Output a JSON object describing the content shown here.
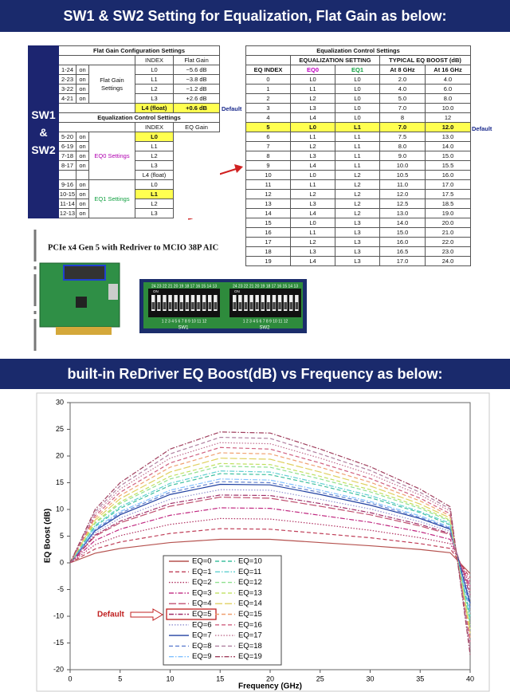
{
  "header": {
    "title": "SW1 & SW2 Setting for Equalization, Flat Gain as below:"
  },
  "switch_table": {
    "group_label": "SW1 & SW2",
    "flat_gain": {
      "title": "Flat Gain Configuration Settings",
      "headers": [
        "INDEX",
        "Flat Gain"
      ],
      "settings_label": "Flat Gain Settings",
      "rows": [
        [
          "1-24",
          "on",
          "L0",
          "−5.6 dB"
        ],
        [
          "2-23",
          "on",
          "L1",
          "−3.8 dB"
        ],
        [
          "3-22",
          "on",
          "L2",
          "−1.2 dB"
        ],
        [
          "4-21",
          "on",
          "L3",
          "+2.6 dB"
        ]
      ],
      "float_row": [
        "L4 (float)",
        "+0.6 dB"
      ],
      "default_label": "Default"
    },
    "eq_control": {
      "title": "Equalization Control Settings",
      "headers": [
        "INDEX",
        "EQ Gain"
      ],
      "eq0_label": "EQ0 Settings",
      "eq0_rows": [
        [
          "5-20",
          "on",
          "L0"
        ],
        [
          "6-19",
          "on",
          "L1"
        ],
        [
          "7-18",
          "on",
          "L2"
        ],
        [
          "8-17",
          "on",
          "L3"
        ]
      ],
      "eq0_float": "L4 (float)",
      "eq1_label": "EQ1 Settings",
      "eq1_rows": [
        [
          "9-16",
          "on",
          "L0"
        ],
        [
          "10-15",
          "on",
          "L1"
        ],
        [
          "11-14",
          "on",
          "L2"
        ],
        [
          "12-13",
          "on",
          "L3"
        ]
      ]
    }
  },
  "eq_table": {
    "title": "Equalization Control Settings",
    "group_headers": [
      "EQUALIZATION SETTING",
      "TYPICAL EQ BOOST (dB)"
    ],
    "headers": [
      "EQ INDEX",
      "EQ0",
      "EQ1",
      "At 8 GHz",
      "At 16 GHz"
    ],
    "rows": [
      [
        "0",
        "L0",
        "L0",
        "2.0",
        "4.0"
      ],
      [
        "1",
        "L1",
        "L0",
        "4.0",
        "6.0"
      ],
      [
        "2",
        "L2",
        "L0",
        "5.0",
        "8.0"
      ],
      [
        "3",
        "L3",
        "L0",
        "7.0",
        "10.0"
      ],
      [
        "4",
        "L4",
        "L0",
        "8",
        "12"
      ],
      [
        "5",
        "L0",
        "L1",
        "7.0",
        "12.0"
      ],
      [
        "6",
        "L1",
        "L1",
        "7.5",
        "13.0"
      ],
      [
        "7",
        "L2",
        "L1",
        "8.0",
        "14.0"
      ],
      [
        "8",
        "L3",
        "L1",
        "9.0",
        "15.0"
      ],
      [
        "9",
        "L4",
        "L1",
        "10.0",
        "15.5"
      ],
      [
        "10",
        "L0",
        "L2",
        "10.5",
        "16.0"
      ],
      [
        "11",
        "L1",
        "L2",
        "11.0",
        "17.0"
      ],
      [
        "12",
        "L2",
        "L2",
        "12.0",
        "17.5"
      ],
      [
        "13",
        "L3",
        "L2",
        "12.5",
        "18.5"
      ],
      [
        "14",
        "L4",
        "L2",
        "13.0",
        "19.0"
      ],
      [
        "15",
        "L0",
        "L3",
        "14.0",
        "20.0"
      ],
      [
        "16",
        "L1",
        "L3",
        "15.0",
        "21.0"
      ],
      [
        "17",
        "L2",
        "L3",
        "16.0",
        "22.0"
      ],
      [
        "18",
        "L3",
        "L3",
        "16.5",
        "23.0"
      ],
      [
        "19",
        "L4",
        "L3",
        "17.0",
        "24.0"
      ]
    ],
    "highlight_row": 5,
    "default_label": "Default"
  },
  "board": {
    "caption": "PCIe x4 Gen 5 with Redriver to MCIO 38P AIC"
  },
  "dip": {
    "sw1": "SW1",
    "sw2": "SW2",
    "on": "ON",
    "top_pins": "24 23 22 21 20 19 18 17 16 15 14 13",
    "bottom_pins": "1 2 3 4 5 6 7 8 9 10 11 12"
  },
  "header2": {
    "title": "built-in ReDriver EQ Boost(dB) vs Frequency as below:"
  },
  "chart_data": {
    "type": "line",
    "xlabel": "Frequency (GHz)",
    "ylabel": "EQ Boost (dB)",
    "x": [
      0,
      2.5,
      5,
      10,
      15,
      20,
      25,
      30,
      35,
      38,
      40
    ],
    "xlim": [
      0,
      40
    ],
    "ylim": [
      -20,
      30
    ],
    "xticks": [
      0,
      5,
      10,
      15,
      20,
      25,
      30,
      35,
      40
    ],
    "yticks": [
      -20,
      -15,
      -10,
      -5,
      0,
      5,
      10,
      15,
      20,
      25,
      30
    ],
    "grid": false,
    "legend": "bottom",
    "annotation": "Default",
    "highlight_series": 5,
    "series": [
      {
        "name": "EQ=0",
        "color": "#b5524f",
        "style": "solid",
        "values": [
          0,
          1.8,
          2.7,
          3.8,
          4.4,
          4.4,
          3.8,
          3.2,
          2.5,
          1.9,
          -2
        ]
      },
      {
        "name": "EQ=1",
        "color": "#c0405a",
        "style": "dashed",
        "values": [
          0,
          2.6,
          3.9,
          5.5,
          6.4,
          6.3,
          5.5,
          4.7,
          3.6,
          2.7,
          -2.8
        ]
      },
      {
        "name": "EQ=2",
        "color": "#b03060",
        "style": "dotted",
        "values": [
          0,
          3.4,
          5.1,
          7.2,
          8.3,
          8.2,
          7.2,
          6.1,
          4.7,
          3.6,
          -3.6
        ]
      },
      {
        "name": "EQ=3",
        "color": "#c02880",
        "style": "dashdot",
        "values": [
          0,
          4.2,
          6.3,
          8.9,
          10.3,
          10.2,
          8.9,
          7.6,
          5.8,
          4.4,
          -4.4
        ]
      },
      {
        "name": "EQ=4",
        "color": "#c05070",
        "style": "longdash",
        "values": [
          0,
          5,
          7.5,
          10.6,
          12.3,
          12.1,
          10.6,
          9,
          6.9,
          5.3,
          -5.2
        ]
      },
      {
        "name": "EQ=5",
        "color": "#a0306a",
        "style": "dashdot",
        "values": [
          0,
          5.2,
          7.8,
          11.1,
          12.7,
          12.6,
          11.1,
          9.4,
          7.2,
          5.5,
          -6
        ]
      },
      {
        "name": "EQ=6",
        "color": "#9090d0",
        "style": "dotted",
        "values": [
          0,
          5.6,
          8.4,
          11.9,
          13.7,
          13.6,
          11.9,
          10.1,
          7.7,
          5.9,
          -6.8
        ]
      },
      {
        "name": "EQ=7",
        "color": "#2040a0",
        "style": "solid",
        "values": [
          0,
          6,
          9,
          12.8,
          14.7,
          14.6,
          12.8,
          10.8,
          8.3,
          6.3,
          -7.6
        ]
      },
      {
        "name": "EQ=8",
        "color": "#6080d0",
        "style": "dashed",
        "values": [
          0,
          6.2,
          9.3,
          13.2,
          15.2,
          15,
          13.2,
          11.2,
          8.5,
          6.5,
          -8.4
        ]
      },
      {
        "name": "EQ=9",
        "color": "#80c0ff",
        "style": "dashdot",
        "values": [
          0,
          6.4,
          9.6,
          13.6,
          15.7,
          15.5,
          13.6,
          11.5,
          8.8,
          6.7,
          -9.2
        ]
      },
      {
        "name": "EQ=10",
        "color": "#40c0a0",
        "style": "dashed",
        "values": [
          0,
          6.8,
          10.2,
          14.5,
          16.7,
          16.5,
          14.5,
          12.2,
          9.4,
          7.1,
          -10
        ]
      },
      {
        "name": "EQ=11",
        "color": "#60d0d0",
        "style": "dashdot",
        "values": [
          0,
          7,
          10.5,
          14.9,
          17.2,
          17,
          14.9,
          12.6,
          9.6,
          7.4,
          -10.8
        ]
      },
      {
        "name": "EQ=12",
        "color": "#90e090",
        "style": "dashed",
        "values": [
          0,
          7.4,
          11.1,
          15.7,
          18.1,
          17.9,
          15.7,
          13.3,
          10.2,
          7.8,
          -11.6
        ]
      },
      {
        "name": "EQ=13",
        "color": "#c0e060",
        "style": "dashed",
        "values": [
          0,
          7.6,
          11.4,
          16.2,
          18.6,
          18.4,
          16.2,
          13.7,
          10.5,
          8,
          -12.4
        ]
      },
      {
        "name": "EQ=14",
        "color": "#e0d060",
        "style": "longdash",
        "values": [
          0,
          8,
          12,
          17,
          19.6,
          19.4,
          17,
          14.4,
          11,
          8.4,
          -13.2
        ]
      },
      {
        "name": "EQ=15",
        "color": "#f0a070",
        "style": "dashed",
        "values": [
          0,
          8.4,
          12.6,
          17.9,
          20.6,
          20.4,
          17.9,
          15.1,
          11.6,
          8.8,
          -14
        ]
      },
      {
        "name": "EQ=16",
        "color": "#d06080",
        "style": "dashed",
        "values": [
          0,
          8.8,
          13.2,
          18.7,
          21.6,
          21.3,
          18.7,
          15.8,
          12.1,
          9.2,
          -14.8
        ]
      },
      {
        "name": "EQ=17",
        "color": "#c07090",
        "style": "dotted",
        "values": [
          0,
          9.2,
          13.8,
          19.6,
          22.5,
          22.3,
          19.6,
          16.6,
          12.7,
          9.7,
          -15.6
        ]
      },
      {
        "name": "EQ=18",
        "color": "#b080a0",
        "style": "dashed",
        "values": [
          0,
          9.6,
          14.4,
          20.4,
          23.5,
          23.3,
          20.4,
          17.3,
          13.2,
          10.1,
          -16.4
        ]
      },
      {
        "name": "EQ=19",
        "color": "#a0405f",
        "style": "dashdot",
        "values": [
          0,
          10,
          15,
          21.3,
          24.5,
          24.3,
          21.3,
          18,
          13.8,
          10.5,
          -17.2
        ]
      }
    ]
  }
}
